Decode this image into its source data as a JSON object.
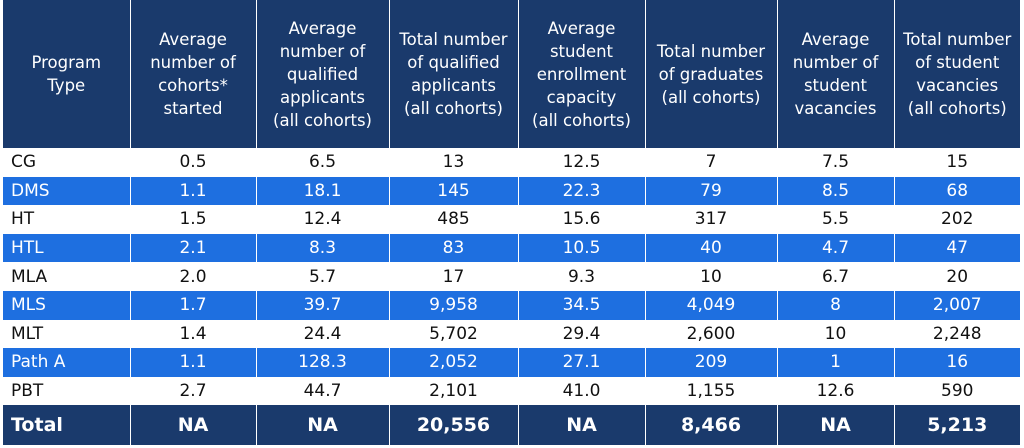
{
  "table": {
    "headers": [
      "Program\nType",
      "Average\nnumber of\ncohorts*\nstarted",
      "Average\nnumber of\nqualified\napplicants\n(all cohorts)",
      "Total number\nof qualified\napplicants\n(all cohorts)",
      "Average\nstudent\nenrollment\ncapacity\n(all cohorts)",
      "Total number\nof graduates\n(all cohorts)",
      "Average\nnumber of\nstudent\nvacancies",
      "Total number\nof student\nvacancies\n(all cohorts)"
    ],
    "rows": [
      [
        "CG",
        "0.5",
        "6.5",
        "13",
        "12.5",
        "7",
        "7.5",
        "15"
      ],
      [
        "DMS",
        "1.1",
        "18.1",
        "145",
        "22.3",
        "79",
        "8.5",
        "68"
      ],
      [
        "HT",
        "1.5",
        "12.4",
        "485",
        "15.6",
        "317",
        "5.5",
        "202"
      ],
      [
        "HTL",
        "2.1",
        "8.3",
        "83",
        "10.5",
        "40",
        "4.7",
        "47"
      ],
      [
        "MLA",
        "2.0",
        "5.7",
        "17",
        "9.3",
        "10",
        "6.7",
        "20"
      ],
      [
        "MLS",
        "1.7",
        "39.7",
        "9,958",
        "34.5",
        "4,049",
        "8",
        "2,007"
      ],
      [
        "MLT",
        "1.4",
        "24.4",
        "5,702",
        "29.4",
        "2,600",
        "10",
        "2,248"
      ],
      [
        "Path A",
        "1.1",
        "128.3",
        "2,052",
        "27.1",
        "209",
        "1",
        "16"
      ],
      [
        "PBT",
        "2.7",
        "44.7",
        "2,101",
        "41.0",
        "1,155",
        "12.6",
        "590"
      ]
    ],
    "total": [
      "Total",
      "NA",
      "NA",
      "20,556",
      "NA",
      "8,466",
      "NA",
      "5,213"
    ]
  },
  "colors": {
    "header_bg": "#1a3a6c",
    "stripe_bg": "#1e6fe0"
  }
}
